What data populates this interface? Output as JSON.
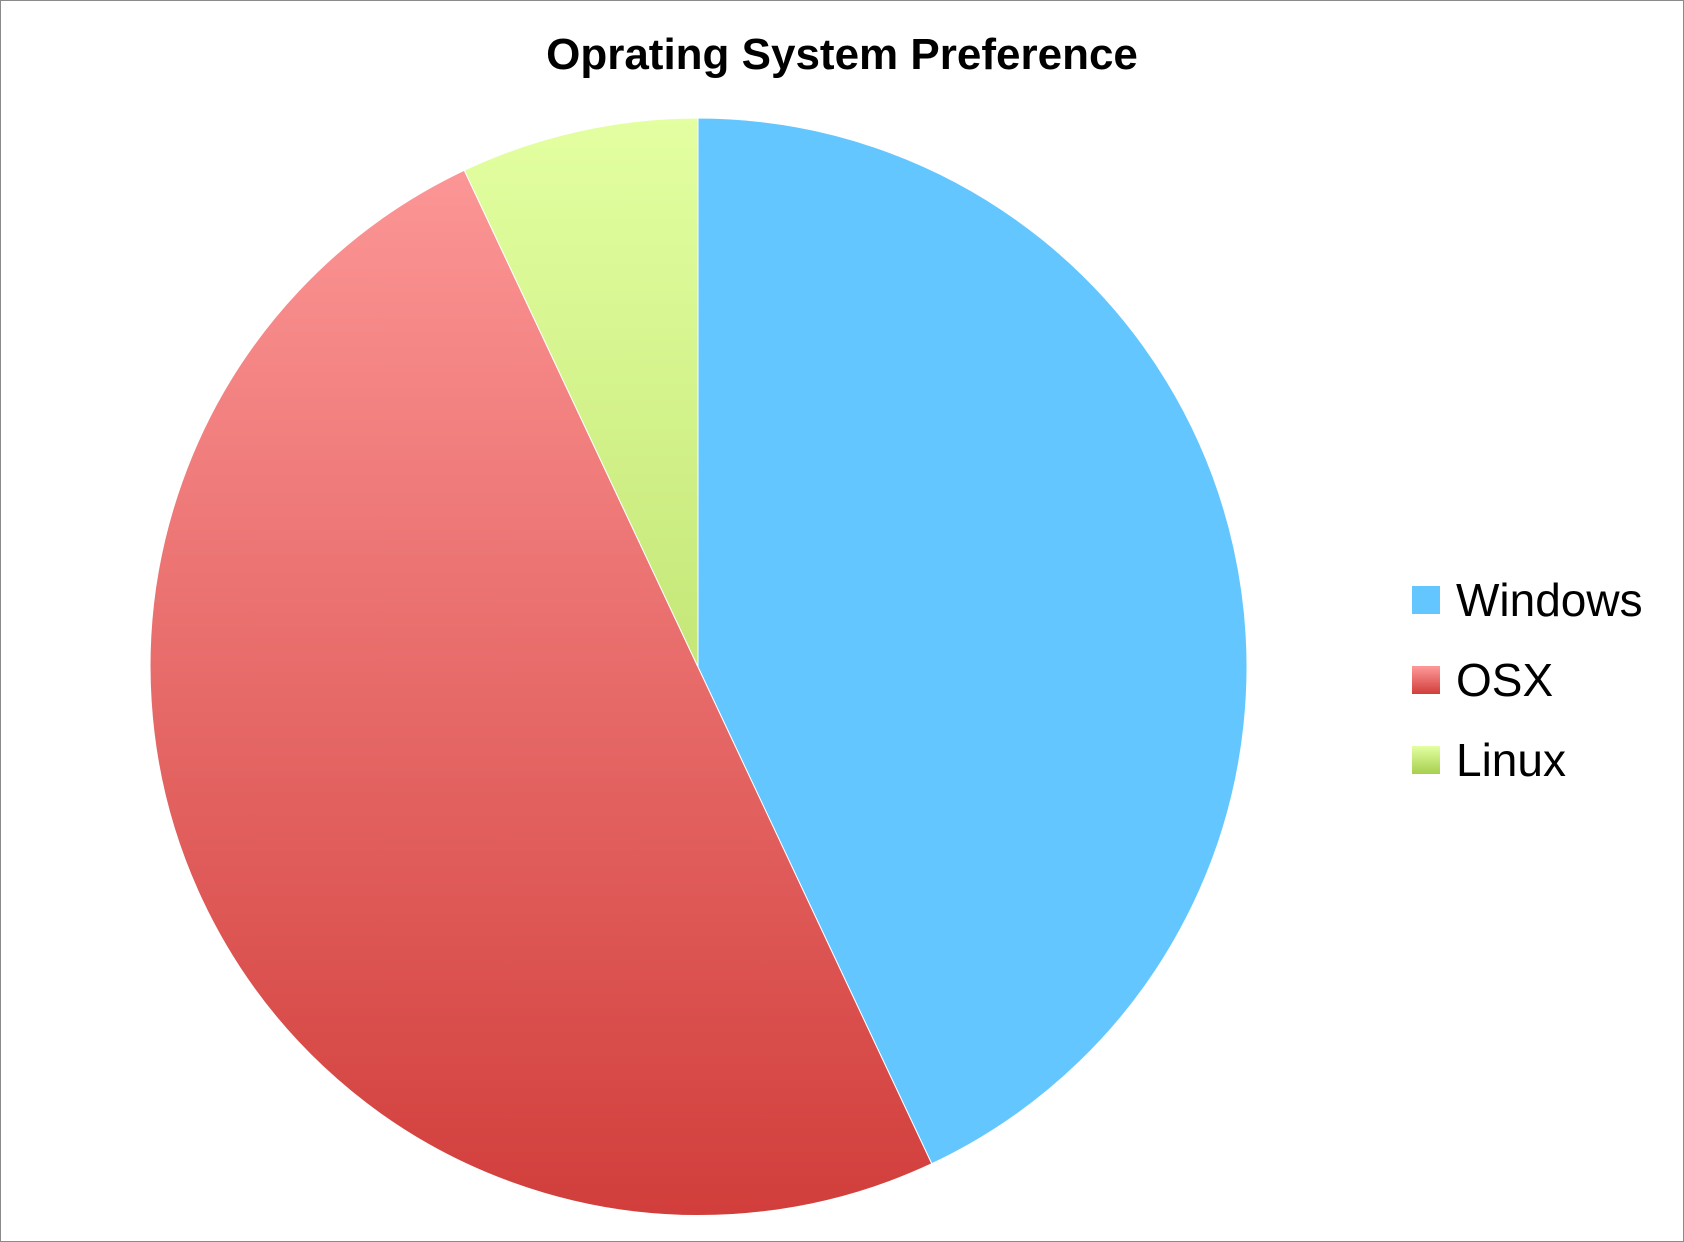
{
  "chart_data": {
    "type": "pie",
    "title": "Oprating System Preference",
    "categories": [
      "Windows",
      "OSX",
      "Linux"
    ],
    "values": [
      43,
      50,
      7
    ],
    "colors": {
      "Windows": {
        "top": "#63c6fe",
        "bottom": "#63c6fe"
      },
      "OSX": {
        "top": "#fe9a9a",
        "bottom": "#d13e3b"
      },
      "Linux": {
        "top": "#e3ffa1",
        "bottom": "#a6cf4e"
      }
    },
    "legend_position": "right",
    "start_angle": "12 o'clock",
    "direction": "clockwise"
  }
}
